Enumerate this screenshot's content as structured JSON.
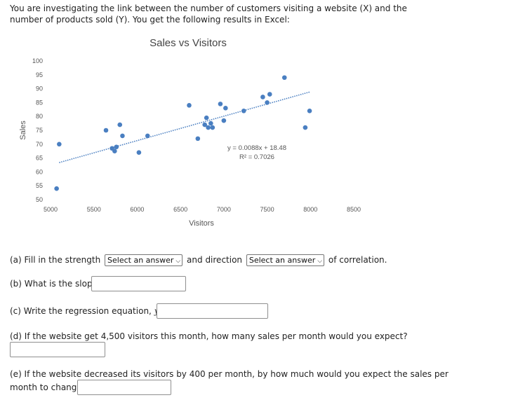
{
  "intro": "You are investigating the link between the number of customers visiting a website (X) and the number of products sold (Y). You get the following results in Excel:",
  "chart_data": {
    "type": "scatter",
    "title": "Sales vs Visitors",
    "xlabel": "Visitors",
    "ylabel": "Sales",
    "xlim": [
      5000,
      8500
    ],
    "ylim": [
      50,
      100
    ],
    "xticks": [
      "5000",
      "5500",
      "6000",
      "6500",
      "7000",
      "7500",
      "8000",
      "8500"
    ],
    "yticks": [
      "50",
      "55",
      "60",
      "65",
      "70",
      "75",
      "80",
      "85",
      "90",
      "95",
      "100"
    ],
    "grid": false,
    "point_color": "#4a7fc1",
    "trendline_color": "#4a7fc1",
    "points": [
      {
        "x": 5070,
        "y": 54
      },
      {
        "x": 5100,
        "y": 70
      },
      {
        "x": 5640,
        "y": 75
      },
      {
        "x": 5710,
        "y": 68.5
      },
      {
        "x": 5740,
        "y": 67.5
      },
      {
        "x": 5760,
        "y": 69
      },
      {
        "x": 5800,
        "y": 77
      },
      {
        "x": 5830,
        "y": 73
      },
      {
        "x": 6020,
        "y": 67
      },
      {
        "x": 6120,
        "y": 73
      },
      {
        "x": 6600,
        "y": 84
      },
      {
        "x": 6700,
        "y": 72
      },
      {
        "x": 6780,
        "y": 77
      },
      {
        "x": 6800,
        "y": 79.5
      },
      {
        "x": 6820,
        "y": 76
      },
      {
        "x": 6850,
        "y": 77.5
      },
      {
        "x": 6870,
        "y": 76
      },
      {
        "x": 6960,
        "y": 84.5
      },
      {
        "x": 7000,
        "y": 78.5
      },
      {
        "x": 7020,
        "y": 83
      },
      {
        "x": 7230,
        "y": 82
      },
      {
        "x": 7450,
        "y": 87
      },
      {
        "x": 7500,
        "y": 85
      },
      {
        "x": 7530,
        "y": 88
      },
      {
        "x": 7700,
        "y": 94
      },
      {
        "x": 7940,
        "y": 76
      },
      {
        "x": 7990,
        "y": 82
      }
    ],
    "trendline": {
      "slope": 0.0088,
      "intercept": 18.48,
      "x_range": [
        5100,
        8000
      ]
    },
    "equation": "y = 0.0088x + 18.48",
    "r_squared": "R² = 0.7026"
  },
  "questions": {
    "a": {
      "before": "(a) Fill in the strength",
      "middle": "and direction",
      "after": "of correlation.",
      "strength_select": "Select an answer",
      "direction_select": "Select an answer"
    },
    "b": {
      "text": "(b) What is the slope?"
    },
    "c": {
      "text": "(c) Write the regression equation,",
      "var": "y",
      "eq": "="
    },
    "d": {
      "text": "(d) If the website get 4,500 visitors this month, how many sales per month would you expect?"
    },
    "e": {
      "line1": "(e) If the website decreased its visitors by 400 per month, by how much would you expect the sales per",
      "line2": "month to change?"
    }
  }
}
